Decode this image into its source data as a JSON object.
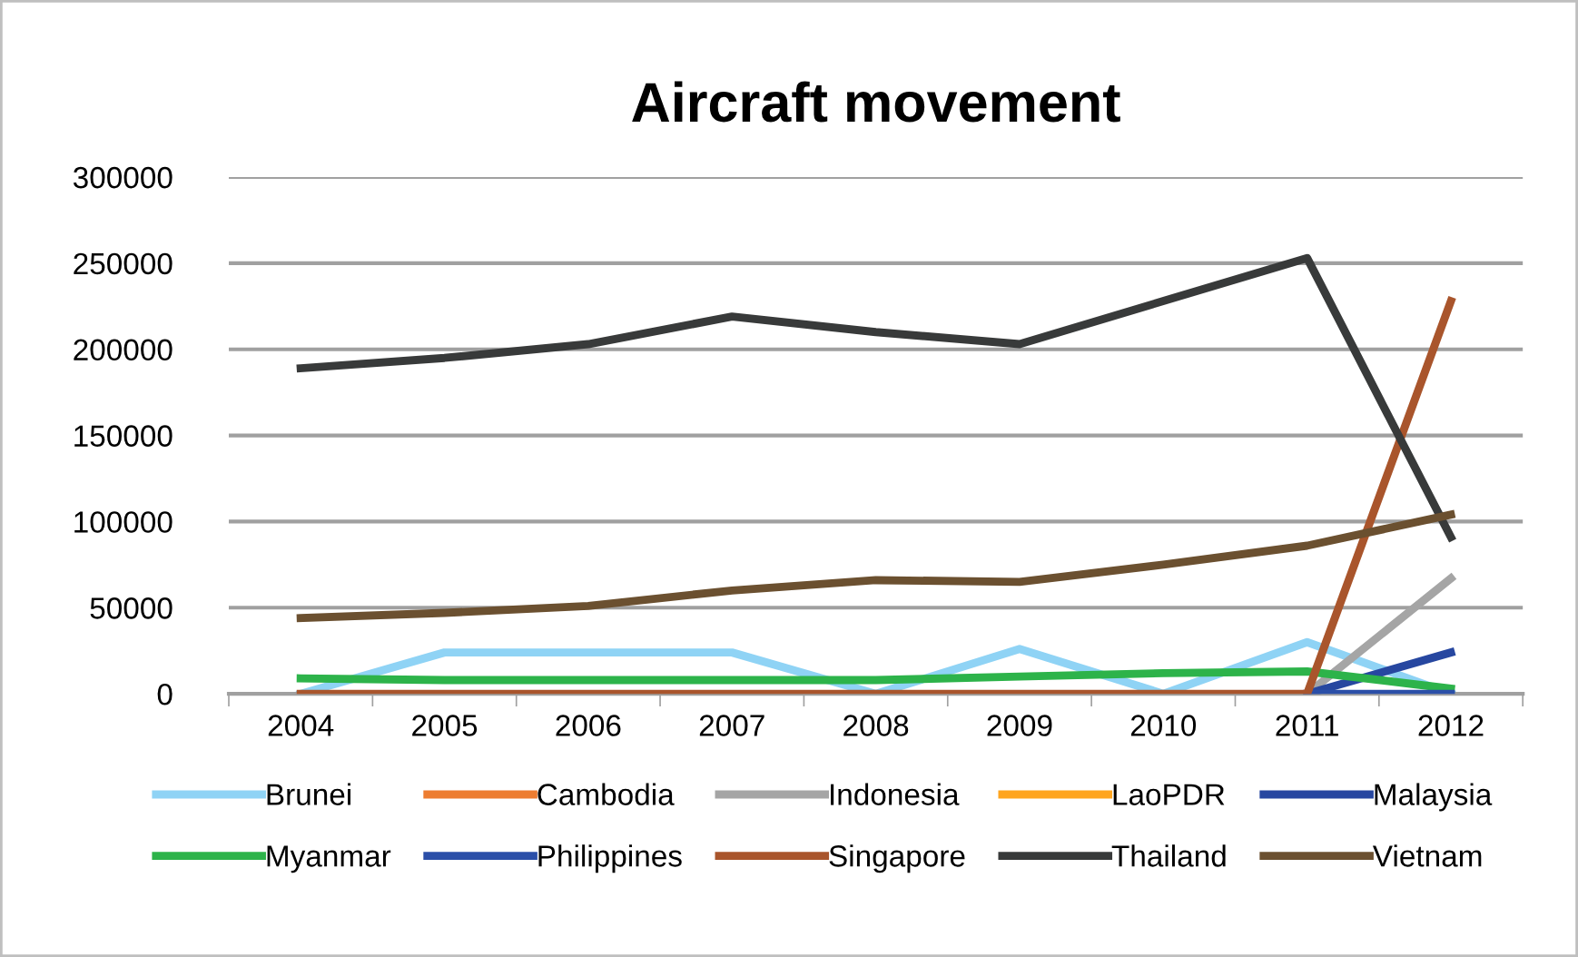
{
  "chart_data": {
    "type": "line",
    "title": "Aircraft movement",
    "categories": [
      "2004",
      "2005",
      "2006",
      "2007",
      "2008",
      "2009",
      "2010",
      "2011",
      "2012"
    ],
    "ylim": [
      0,
      300000
    ],
    "yticks": [
      0,
      50000,
      100000,
      150000,
      200000,
      250000,
      300000
    ],
    "grid": "y",
    "legend": "bottom",
    "marker": "none",
    "line_style": "solid",
    "series": [
      {
        "name": "Brunei",
        "color": "#8fd3f5",
        "values": [
          0,
          24000,
          24000,
          24000,
          0,
          26000,
          0,
          30000,
          0
        ]
      },
      {
        "name": "Cambodia",
        "color": "#ed7d31",
        "values": [
          null,
          null,
          null,
          null,
          null,
          null,
          null,
          null,
          null
        ]
      },
      {
        "name": "Indonesia",
        "color": "#a5a5a5",
        "values": [
          null,
          null,
          null,
          null,
          null,
          null,
          null,
          0,
          67000
        ]
      },
      {
        "name": "LaoPDR",
        "color": "#ffa51f",
        "values": [
          null,
          null,
          null,
          null,
          null,
          null,
          null,
          null,
          null
        ]
      },
      {
        "name": "Malaysia",
        "color": "#2747a0",
        "values": [
          null,
          null,
          null,
          null,
          null,
          null,
          null,
          0,
          24000
        ]
      },
      {
        "name": "Myanmar",
        "color": "#2db34a",
        "values": [
          9000,
          8000,
          8000,
          8000,
          8000,
          10000,
          12000,
          13000,
          3000
        ]
      },
      {
        "name": "Philippines",
        "color": "#2b4fa8",
        "values": [
          null,
          null,
          null,
          null,
          null,
          null,
          null,
          0,
          0
        ]
      },
      {
        "name": "Singapore",
        "color": "#a9552c",
        "values": [
          0,
          0,
          0,
          0,
          0,
          0,
          0,
          0,
          228000
        ]
      },
      {
        "name": "Thailand",
        "color": "#383a3a",
        "values": [
          189000,
          195000,
          203000,
          219000,
          210000,
          203000,
          228000,
          253000,
          91000
        ]
      },
      {
        "name": "Vietnam",
        "color": "#6b5030",
        "values": [
          44000,
          47000,
          51000,
          60000,
          66000,
          65000,
          75000,
          86000,
          104000
        ]
      }
    ]
  }
}
